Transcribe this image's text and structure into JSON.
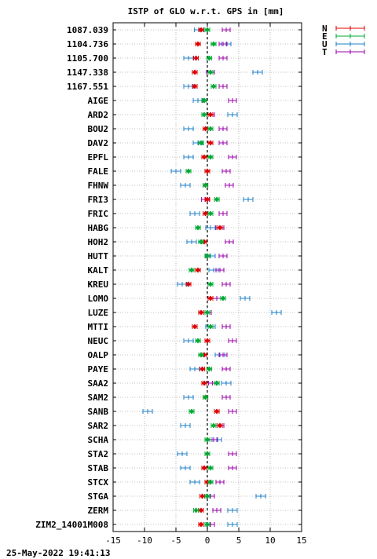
{
  "chart_data": {
    "type": "errorbar",
    "title": "ISTP of GLO w.r.t. GPS in [mm]",
    "xlim": [
      -15,
      15
    ],
    "xticks": [
      -15,
      -10,
      -5,
      0,
      5,
      10,
      15
    ],
    "zero_line": "dashed",
    "grid": "dotted",
    "timestamp": "25-May-2022 19:41:13",
    "legend_position": "top-right-outside",
    "series": [
      {
        "name": "N",
        "color": "#dd0000"
      },
      {
        "name": "E",
        "color": "#00aa33"
      },
      {
        "name": "U",
        "color": "#1e7fc8"
      },
      {
        "name": "T",
        "color": "#9900aa"
      }
    ],
    "stations": [
      {
        "name": "1087.039",
        "N": -1.0,
        "E": 0.0,
        "U": -1.3,
        "T": 3.0
      },
      {
        "name": "1104.736",
        "N": -1.5,
        "E": 1.0,
        "U": 3.0,
        "T": 2.5
      },
      {
        "name": "1105.700",
        "N": -1.8,
        "E": 0.3,
        "U": -3.0,
        "T": 2.5
      },
      {
        "name": "1147.338",
        "N": -2.0,
        "E": 0.5,
        "U": 8.0,
        "T": 0.5
      },
      {
        "name": "1167.551",
        "N": -2.0,
        "E": 1.0,
        "U": -3.0,
        "T": 2.5
      },
      {
        "name": "AIGE",
        "N": -0.5,
        "E": -0.5,
        "U": -1.5,
        "T": 4.0
      },
      {
        "name": "ARD2",
        "N": 0.5,
        "E": -0.5,
        "U": 4.0,
        "T": 0.5
      },
      {
        "name": "BOU2",
        "N": -0.3,
        "E": 0.5,
        "U": -3.0,
        "T": 2.5
      },
      {
        "name": "DAV2",
        "N": 0.5,
        "E": -1.0,
        "U": -1.5,
        "T": 2.5
      },
      {
        "name": "EPFL",
        "N": -0.5,
        "E": 0.5,
        "U": -3.0,
        "T": 4.0
      },
      {
        "name": "FALE",
        "N": 0.0,
        "E": -3.0,
        "U": -5.0,
        "T": 3.0
      },
      {
        "name": "FHNW",
        "N": -0.3,
        "E": -0.3,
        "U": -3.5,
        "T": 3.5
      },
      {
        "name": "FRI3",
        "N": 0.0,
        "E": 1.5,
        "U": 6.5,
        "T": -0.3
      },
      {
        "name": "FRIC",
        "N": -0.3,
        "E": 0.5,
        "U": -2.0,
        "T": 2.5
      },
      {
        "name": "HABG",
        "N": 2.0,
        "E": -1.5,
        "U": 0.5,
        "T": 2.0
      },
      {
        "name": "HOH2",
        "N": -0.5,
        "E": -1.0,
        "U": -2.5,
        "T": 3.5
      },
      {
        "name": "HUTT",
        "N": 0.0,
        "E": 0.0,
        "U": 0.5,
        "T": 2.5
      },
      {
        "name": "KALT",
        "N": -1.5,
        "E": -2.5,
        "U": 1.0,
        "T": 2.0
      },
      {
        "name": "KREU",
        "N": -3.0,
        "E": 0.5,
        "U": -4.0,
        "T": 3.0
      },
      {
        "name": "LOMO",
        "N": 0.5,
        "E": 2.5,
        "U": 6.0,
        "T": 1.5
      },
      {
        "name": "LUZE",
        "N": -1.0,
        "E": 0.0,
        "U": 11.0,
        "T": 0.0
      },
      {
        "name": "MTTI",
        "N": -2.0,
        "E": 0.5,
        "U": 0.5,
        "T": 3.0
      },
      {
        "name": "NEUC",
        "N": 0.0,
        "E": -1.5,
        "U": -3.0,
        "T": 4.0
      },
      {
        "name": "OALP",
        "N": -0.5,
        "E": -1.0,
        "U": 2.0,
        "T": 2.5
      },
      {
        "name": "PAYE",
        "N": -0.8,
        "E": 0.3,
        "U": -2.0,
        "T": 3.0
      },
      {
        "name": "SAA2",
        "N": -0.5,
        "E": 1.5,
        "U": 3.0,
        "T": 0.8
      },
      {
        "name": "SAM2",
        "N": -0.3,
        "E": -0.3,
        "U": -3.0,
        "T": 3.0
      },
      {
        "name": "SANB",
        "N": 1.5,
        "E": -2.5,
        "U": -9.5,
        "T": 4.0
      },
      {
        "name": "SAR2",
        "N": 2.0,
        "E": 1.0,
        "U": -3.5,
        "T": 2.0
      },
      {
        "name": "SCHA",
        "N": 0.0,
        "E": 0.0,
        "U": 1.5,
        "T": 1.0
      },
      {
        "name": "STA2",
        "N": 0.0,
        "E": 0.0,
        "U": -4.0,
        "T": 4.0
      },
      {
        "name": "STAB",
        "N": -0.5,
        "E": 0.5,
        "U": -3.5,
        "T": 4.0
      },
      {
        "name": "STCX",
        "N": 0.0,
        "E": 0.5,
        "U": -2.0,
        "T": 2.0
      },
      {
        "name": "STGA",
        "N": -0.8,
        "E": 0.0,
        "U": 8.5,
        "T": 0.5
      },
      {
        "name": "ZERM",
        "N": -1.0,
        "E": -1.8,
        "U": 4.0,
        "T": 1.5
      },
      {
        "name": "ZIM2_14001M008",
        "N": -1.0,
        "E": 0.0,
        "U": 4.0,
        "T": 0.5
      }
    ]
  }
}
